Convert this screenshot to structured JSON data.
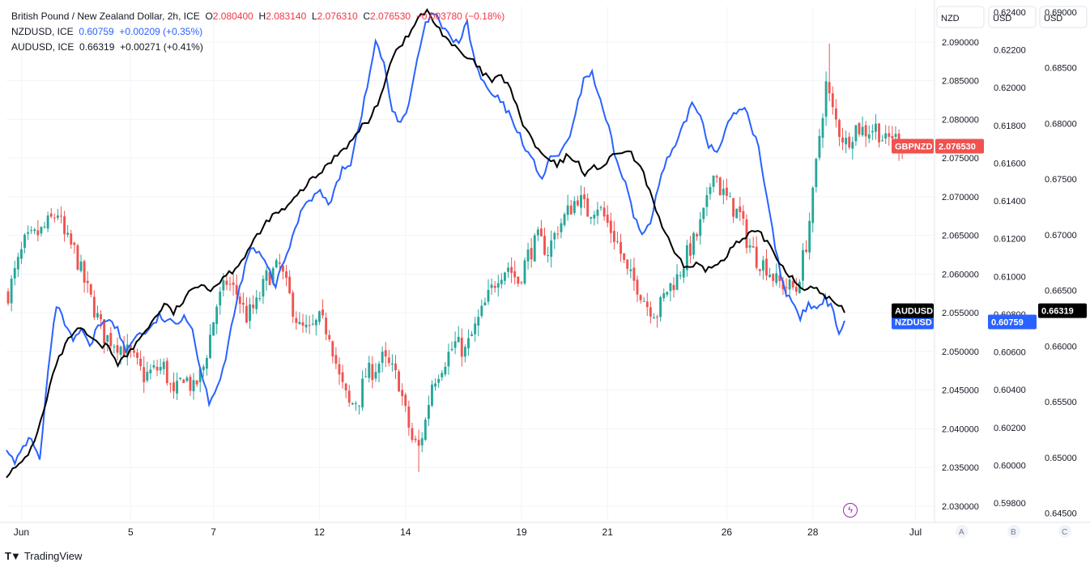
{
  "legend": {
    "main": {
      "name": "British Pound / New Zealand Dollar, 2h, ICE",
      "o_label": "O",
      "o": "2.080400",
      "h_label": "H",
      "h": "2.083140",
      "l_label": "L",
      "l": "2.076310",
      "c_label": "C",
      "c": "2.076530",
      "chg": "−0.003780 (−0.18%)"
    },
    "nzd": {
      "name": "NZDUSD, ICE",
      "value": "0.60759",
      "chg": "+0.00209 (+0.35%)"
    },
    "aud": {
      "name": "AUDUSD, ICE",
      "value": "0.66319",
      "chg": "+0.00271 (+0.41%)"
    }
  },
  "brand": "TradingView",
  "colors": {
    "up": "#26a69a",
    "down": "#ef5350",
    "nzd": "#2962ff",
    "aud": "#000000",
    "grid": "#f0f3fa",
    "text": "#131722"
  },
  "chart_data": {
    "type": "candlestick-with-overlays",
    "symbol": "GBPNZD",
    "axes": {
      "nzd": {
        "header": "NZD",
        "range": [
          2.0282,
          2.0946
        ],
        "ticks": [
          "2.090000",
          "2.085000",
          "2.080000",
          "2.075000",
          "2.070000",
          "2.065000",
          "2.060000",
          "2.055000",
          "2.050000",
          "2.045000",
          "2.040000",
          "2.035000",
          "2.030000"
        ],
        "tick_values": [
          2.09,
          2.085,
          2.08,
          2.075,
          2.07,
          2.065,
          2.06,
          2.055,
          2.05,
          2.045,
          2.04,
          2.035,
          2.03
        ],
        "badge_label": "GBPNZD",
        "badge_value": "2.076530"
      },
      "usd1": {
        "header": "USD",
        "range": [
          0.5971,
          0.6243
        ],
        "ticks": [
          "0.62400",
          "0.62200",
          "0.62000",
          "0.61800",
          "0.61600",
          "0.61400",
          "0.61200",
          "0.61000",
          "0.60800",
          "0.60600",
          "0.60400",
          "0.60200",
          "0.60000",
          "0.59800"
        ],
        "tick_values": [
          0.624,
          0.622,
          0.62,
          0.618,
          0.616,
          0.614,
          0.612,
          0.61,
          0.608,
          0.606,
          0.604,
          0.602,
          0.6,
          0.598
        ],
        "badge_label": "NZDUSD",
        "badge_value": "0.60759"
      },
      "usd2": {
        "header": "USD",
        "range": [
          0.6444,
          0.6905
        ],
        "ticks": [
          "0.69000",
          "0.68500",
          "0.68000",
          "0.67500",
          "0.67000",
          "0.66500",
          "0.66000",
          "0.65500",
          "0.65000",
          "0.64500"
        ],
        "tick_values": [
          0.69,
          0.685,
          0.68,
          0.675,
          0.67,
          0.665,
          0.66,
          0.655,
          0.65,
          0.645
        ],
        "badge_label": "AUDUSD",
        "badge_value": "0.66319"
      },
      "scale_buttons": [
        "A",
        "B",
        "C"
      ]
    },
    "x_ticks": [
      "Jun",
      "5",
      "7",
      "12",
      "14",
      "19",
      "21",
      "26",
      "28",
      "Jul"
    ],
    "x_tick_index": [
      4,
      37,
      62,
      94,
      120,
      155,
      181,
      217,
      243,
      274
    ],
    "num_bars": 280,
    "candle_close_anchors": [
      [
        0,
        2.0575
      ],
      [
        5,
        2.064
      ],
      [
        10,
        2.0655
      ],
      [
        15,
        2.068
      ],
      [
        17,
        2.0648
      ],
      [
        20,
        2.063
      ],
      [
        23,
        2.059
      ],
      [
        26,
        2.0555
      ],
      [
        29,
        2.052
      ],
      [
        33,
        2.051
      ],
      [
        37,
        2.0495
      ],
      [
        41,
        2.0468
      ],
      [
        44,
        2.0475
      ],
      [
        47,
        2.048
      ],
      [
        50,
        2.044
      ],
      [
        53,
        2.047
      ],
      [
        56,
        2.045
      ],
      [
        59,
        2.048
      ],
      [
        63,
        2.056
      ],
      [
        66,
        2.059
      ],
      [
        69,
        2.0575
      ],
      [
        72,
        2.0545
      ],
      [
        75,
        2.056
      ],
      [
        78,
        2.0595
      ],
      [
        82,
        2.061
      ],
      [
        85,
        2.057
      ],
      [
        88,
        2.053
      ],
      [
        91,
        2.0525
      ],
      [
        94,
        2.054
      ],
      [
        97,
        2.0525
      ],
      [
        100,
        2.0465
      ],
      [
        103,
        2.043
      ],
      [
        106,
        2.044
      ],
      [
        108,
        2.047
      ],
      [
        110,
        2.0475
      ],
      [
        113,
        2.049
      ],
      [
        116,
        2.0475
      ],
      [
        118,
        2.046
      ],
      [
        120,
        2.042
      ],
      [
        122,
        2.0385
      ],
      [
        124,
        2.0375
      ],
      [
        126,
        2.041
      ],
      [
        128,
        2.046
      ],
      [
        132,
        2.049
      ],
      [
        135,
        2.051
      ],
      [
        138,
        2.05
      ],
      [
        141,
        2.053
      ],
      [
        144,
        2.056
      ],
      [
        148,
        2.06
      ],
      [
        151,
        2.061
      ],
      [
        154,
        2.059
      ],
      [
        157,
        2.0625
      ],
      [
        160,
        2.0645
      ],
      [
        163,
        2.063
      ],
      [
        166,
        2.066
      ],
      [
        169,
        2.068
      ],
      [
        172,
        2.07
      ],
      [
        175,
        2.068
      ],
      [
        178,
        2.069
      ],
      [
        181,
        2.0665
      ],
      [
        184,
        2.064
      ],
      [
        187,
        2.06
      ],
      [
        190,
        2.0585
      ],
      [
        193,
        2.056
      ],
      [
        196,
        2.055
      ],
      [
        199,
        2.058
      ],
      [
        202,
        2.0595
      ],
      [
        205,
        2.0625
      ],
      [
        208,
        2.065
      ],
      [
        211,
        2.069
      ],
      [
        213,
        2.074
      ],
      [
        215,
        2.071
      ],
      [
        218,
        2.069
      ],
      [
        221,
        2.0675
      ],
      [
        223,
        2.0645
      ],
      [
        226,
        2.062
      ],
      [
        229,
        2.061
      ],
      [
        232,
        2.059
      ],
      [
        235,
        2.0585
      ],
      [
        238,
        2.058
      ],
      [
        241,
        2.064
      ],
      [
        243,
        2.07
      ],
      [
        245,
        2.078
      ],
      [
        247,
        2.0845
      ],
      [
        249,
        2.081
      ],
      [
        251,
        2.0785
      ],
      [
        253,
        2.077
      ],
      [
        256,
        2.079
      ],
      [
        259,
        2.0785
      ],
      [
        262,
        2.079
      ],
      [
        265,
        2.077
      ],
      [
        267,
        2.078
      ],
      [
        270,
        2.0765
      ]
    ],
    "candle_wick_extremes": {
      "high": 2.0898,
      "high_bar": 248,
      "low": 2.0344,
      "low_bar": 124
    },
    "nzdusd_anchors": [
      [
        0,
        0.601
      ],
      [
        3,
        0.6
      ],
      [
        6,
        0.601
      ],
      [
        9,
        0.6015
      ],
      [
        12,
        0.6002
      ],
      [
        15,
        0.605
      ],
      [
        18,
        0.6085
      ],
      [
        21,
        0.6075
      ],
      [
        24,
        0.6065
      ],
      [
        27,
        0.6072
      ],
      [
        30,
        0.6062
      ],
      [
        33,
        0.6074
      ],
      [
        36,
        0.6078
      ],
      [
        40,
        0.6072
      ],
      [
        43,
        0.606
      ],
      [
        46,
        0.6068
      ],
      [
        49,
        0.607
      ],
      [
        52,
        0.6072
      ],
      [
        55,
        0.6079
      ],
      [
        58,
        0.6076
      ],
      [
        61,
        0.6075
      ],
      [
        64,
        0.608
      ],
      [
        67,
        0.6072
      ],
      [
        70,
        0.605
      ],
      [
        73,
        0.6034
      ],
      [
        76,
        0.6042
      ],
      [
        79,
        0.6056
      ],
      [
        82,
        0.608
      ],
      [
        85,
        0.61
      ],
      [
        88,
        0.6115
      ],
      [
        91,
        0.6112
      ],
      [
        94,
        0.6105
      ],
      [
        97,
        0.6095
      ],
      [
        100,
        0.6108
      ],
      [
        103,
        0.612
      ],
      [
        105,
        0.613
      ],
      [
        107,
        0.6138
      ],
      [
        110,
        0.6142
      ],
      [
        113,
        0.6145
      ],
      [
        116,
        0.6138
      ],
      [
        119,
        0.6148
      ],
      [
        121,
        0.6158
      ],
      [
        124,
        0.616
      ],
      [
        127,
        0.618
      ],
      [
        130,
        0.62
      ],
      [
        133,
        0.6225
      ],
      [
        136,
        0.6212
      ],
      [
        139,
        0.6188
      ],
      [
        142,
        0.6182
      ],
      [
        145,
        0.619
      ],
      [
        148,
        0.6215
      ],
      [
        151,
        0.6233
      ],
      [
        154,
        0.624
      ],
      [
        157,
        0.6232
      ],
      [
        160,
        0.6226
      ],
      [
        163,
        0.6224
      ],
      [
        166,
        0.6234
      ],
      [
        169,
        0.6212
      ],
      [
        172,
        0.6202
      ],
      [
        175,
        0.6196
      ],
      [
        178,
        0.6193
      ],
      [
        181,
        0.6186
      ],
      [
        184,
        0.6178
      ],
      [
        187,
        0.6168
      ],
      [
        190,
        0.616
      ],
      [
        193,
        0.6152
      ],
      [
        196,
        0.6162
      ],
      [
        199,
        0.6165
      ],
      [
        202,
        0.617
      ],
      [
        205,
        0.6185
      ],
      [
        208,
        0.6205
      ],
      [
        211,
        0.6208
      ],
      [
        214,
        0.6192
      ],
      [
        217,
        0.6178
      ],
      [
        220,
        0.616
      ],
      [
        223,
        0.615
      ],
      [
        226,
        0.6132
      ],
      [
        229,
        0.6122
      ],
      [
        232,
        0.613
      ],
      [
        235,
        0.6148
      ],
      [
        238,
        0.6162
      ],
      [
        241,
        0.6168
      ],
      [
        244,
        0.618
      ],
      [
        247,
        0.6192
      ],
      [
        250,
        0.6186
      ],
      [
        253,
        0.617
      ],
      [
        256,
        0.6166
      ],
      [
        259,
        0.6178
      ],
      [
        262,
        0.6185
      ],
      [
        265,
        0.619
      ],
      [
        267,
        0.6186
      ],
      [
        269,
        0.6175
      ],
      [
        271,
        0.617
      ],
      [
        273,
        0.615
      ],
      [
        275,
        0.6135
      ],
      [
        277,
        0.6115
      ],
      [
        280,
        0.6095
      ],
      [
        283,
        0.6085
      ],
      [
        286,
        0.6078
      ],
      [
        289,
        0.6085
      ],
      [
        292,
        0.6082
      ],
      [
        295,
        0.6088
      ],
      [
        298,
        0.6082
      ],
      [
        300,
        0.607
      ],
      [
        302,
        0.6076
      ]
    ],
    "audusd_anchors": [
      [
        0,
        0.6485
      ],
      [
        4,
        0.6492
      ],
      [
        8,
        0.6508
      ],
      [
        12,
        0.654
      ],
      [
        15,
        0.6575
      ],
      [
        18,
        0.6595
      ],
      [
        21,
        0.661
      ],
      [
        24,
        0.6615
      ],
      [
        27,
        0.6608
      ],
      [
        30,
        0.66
      ],
      [
        33,
        0.66
      ],
      [
        36,
        0.6585
      ],
      [
        39,
        0.6592
      ],
      [
        42,
        0.6602
      ],
      [
        45,
        0.6615
      ],
      [
        48,
        0.6625
      ],
      [
        51,
        0.6638
      ],
      [
        54,
        0.663
      ],
      [
        57,
        0.664
      ],
      [
        60,
        0.665
      ],
      [
        63,
        0.6658
      ],
      [
        66,
        0.665
      ],
      [
        70,
        0.6662
      ],
      [
        73,
        0.6668
      ],
      [
        76,
        0.6677
      ],
      [
        79,
        0.669
      ],
      [
        82,
        0.6702
      ],
      [
        85,
        0.6715
      ],
      [
        88,
        0.672
      ],
      [
        91,
        0.6725
      ],
      [
        94,
        0.6735
      ],
      [
        97,
        0.6745
      ],
      [
        100,
        0.6752
      ],
      [
        103,
        0.676
      ],
      [
        106,
        0.677
      ],
      [
        109,
        0.6778
      ],
      [
        112,
        0.6785
      ],
      [
        115,
        0.6798
      ],
      [
        118,
        0.6805
      ],
      [
        121,
        0.6825
      ],
      [
        124,
        0.6855
      ],
      [
        127,
        0.687
      ],
      [
        130,
        0.6878
      ],
      [
        133,
        0.6895
      ],
      [
        136,
        0.69
      ],
      [
        139,
        0.6888
      ],
      [
        142,
        0.6878
      ],
      [
        145,
        0.6868
      ],
      [
        148,
        0.686
      ],
      [
        151,
        0.6855
      ],
      [
        154,
        0.6845
      ],
      [
        157,
        0.6838
      ],
      [
        160,
        0.6842
      ],
      [
        163,
        0.6832
      ],
      [
        166,
        0.6805
      ],
      [
        169,
        0.679
      ],
      [
        172,
        0.6775
      ],
      [
        175,
        0.6768
      ],
      [
        178,
        0.6762
      ],
      [
        181,
        0.677
      ],
      [
        184,
        0.6768
      ],
      [
        187,
        0.6755
      ],
      [
        190,
        0.676
      ],
      [
        193,
        0.6762
      ],
      [
        196,
        0.677
      ],
      [
        199,
        0.6775
      ],
      [
        202,
        0.6772
      ],
      [
        205,
        0.676
      ],
      [
        208,
        0.674
      ],
      [
        211,
        0.6715
      ],
      [
        214,
        0.6695
      ],
      [
        217,
        0.6678
      ],
      [
        220,
        0.667
      ],
      [
        223,
        0.6675
      ],
      [
        226,
        0.6668
      ],
      [
        229,
        0.6672
      ],
      [
        232,
        0.668
      ],
      [
        235,
        0.669
      ],
      [
        238,
        0.6695
      ],
      [
        241,
        0.6702
      ],
      [
        244,
        0.67
      ],
      [
        247,
        0.669
      ],
      [
        250,
        0.6675
      ],
      [
        253,
        0.6665
      ],
      [
        256,
        0.6655
      ],
      [
        259,
        0.6652
      ],
      [
        262,
        0.665
      ],
      [
        265,
        0.6645
      ],
      [
        268,
        0.6638
      ],
      [
        271,
        0.6632
      ]
    ]
  }
}
